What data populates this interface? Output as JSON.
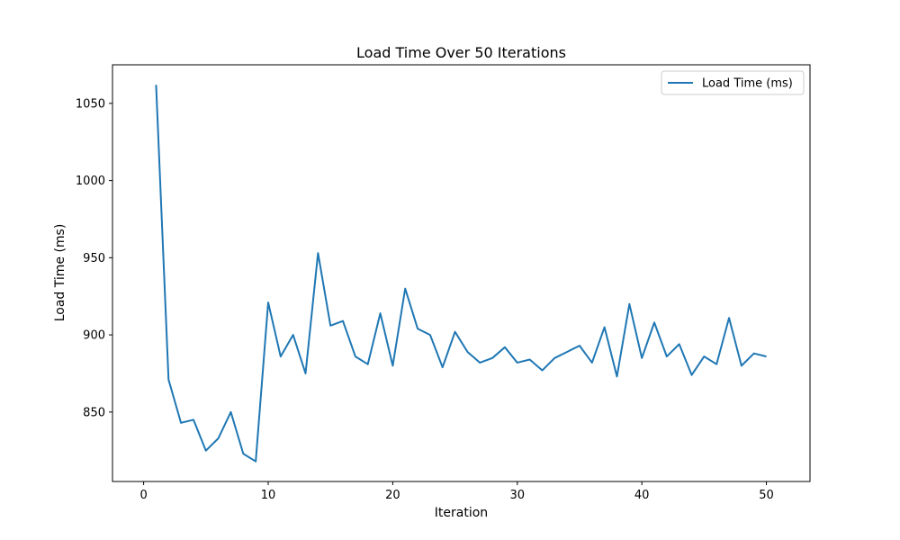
{
  "chart_data": {
    "type": "line",
    "title": "Load Time Over 50 Iterations",
    "xlabel": "Iteration",
    "ylabel": "Load Time (ms)",
    "xlim": [
      -2.5,
      53.5
    ],
    "ylim": [
      805,
      1075
    ],
    "xticks": [
      0,
      10,
      20,
      30,
      40,
      50
    ],
    "yticks": [
      850,
      900,
      950,
      1000,
      1050
    ],
    "legend": "top-right",
    "grid": false,
    "series": [
      {
        "name": "Load Time (ms)",
        "color": "#1f77b4",
        "x": [
          1,
          2,
          3,
          4,
          5,
          6,
          7,
          8,
          9,
          10,
          11,
          12,
          13,
          14,
          15,
          16,
          17,
          18,
          19,
          20,
          21,
          22,
          23,
          24,
          25,
          26,
          27,
          28,
          29,
          30,
          31,
          32,
          33,
          34,
          35,
          36,
          37,
          38,
          39,
          40,
          41,
          42,
          43,
          44,
          45,
          46,
          47,
          48,
          49,
          50
        ],
        "y": [
          1062,
          871,
          843,
          845,
          825,
          833,
          850,
          823,
          818,
          921,
          886,
          900,
          875,
          953,
          906,
          909,
          886,
          881,
          914,
          880,
          930,
          904,
          900,
          879,
          902,
          889,
          882,
          885,
          892,
          882,
          884,
          877,
          885,
          889,
          893,
          882,
          905,
          873,
          920,
          885,
          908,
          886,
          894,
          874,
          886,
          881,
          911,
          880,
          888,
          886
        ]
      }
    ]
  }
}
